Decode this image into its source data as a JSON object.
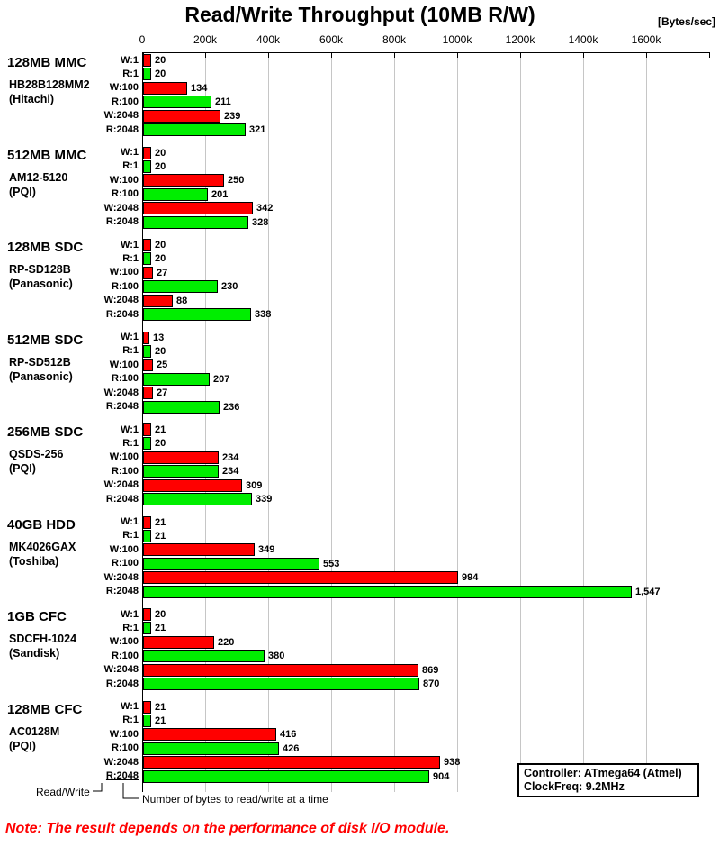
{
  "chart": {
    "title": "Read/Write Throughput (10MB R/W)",
    "unit_label": "[Bytes/sec]",
    "annotations": {
      "read_write": "Read/Write",
      "bytes_at_a_time": "Number of bytes to read/write at a time"
    },
    "info_box": {
      "line1": "Controller: ATmega64 (Atmel)",
      "line2": "ClockFreq: 9.2MHz"
    },
    "note": "Note: The result depends on the performance of disk I/O module."
  },
  "chart_data": {
    "type": "bar",
    "orientation": "horizontal",
    "title": "Read/Write Throughput (10MB R/W)",
    "value_unit": "Bytes/sec",
    "value_scale_note": "bar labels are in kBytes/sec (x1000 Bytes/sec)",
    "x_tick_labels": [
      "0",
      "200k",
      "400k",
      "600k",
      "800k",
      "1000k",
      "1200k",
      "1400k",
      "1600k"
    ],
    "x_axis_range": [
      0,
      1800
    ],
    "grid": true,
    "row_labels": [
      "W:1",
      "R:1",
      "W:100",
      "R:100",
      "W:2048",
      "R:2048"
    ],
    "series_colors": {
      "write": "#ff0000",
      "read": "#00ee00"
    },
    "groups": [
      {
        "device": "128MB MMC",
        "model": "HB28B128MM2",
        "maker": "(Hitachi)",
        "values": [
          20,
          20,
          134,
          211,
          239,
          321
        ]
      },
      {
        "device": "512MB MMC",
        "model": "AM12-5120",
        "maker": "(PQI)",
        "values": [
          20,
          20,
          250,
          201,
          342,
          328
        ]
      },
      {
        "device": "128MB SDC",
        "model": "RP-SD128B",
        "maker": "(Panasonic)",
        "values": [
          20,
          20,
          27,
          230,
          88,
          338
        ]
      },
      {
        "device": "512MB SDC",
        "model": "RP-SD512B",
        "maker": "(Panasonic)",
        "values": [
          13,
          20,
          25,
          207,
          27,
          236
        ]
      },
      {
        "device": "256MB SDC",
        "model": "QSDS-256",
        "maker": "(PQI)",
        "values": [
          21,
          20,
          234,
          234,
          309,
          339
        ]
      },
      {
        "device": "40GB HDD",
        "model": "MK4026GAX",
        "maker": "(Toshiba)",
        "values": [
          21,
          21,
          349,
          553,
          994,
          1547
        ]
      },
      {
        "device": "1GB CFC",
        "model": "SDCFH-1024",
        "maker": "(Sandisk)",
        "values": [
          20,
          21,
          220,
          380,
          869,
          870
        ]
      },
      {
        "device": "128MB CFC",
        "model": "AC0128M",
        "maker": "(PQI)",
        "values": [
          21,
          21,
          416,
          426,
          938,
          904
        ]
      }
    ]
  }
}
